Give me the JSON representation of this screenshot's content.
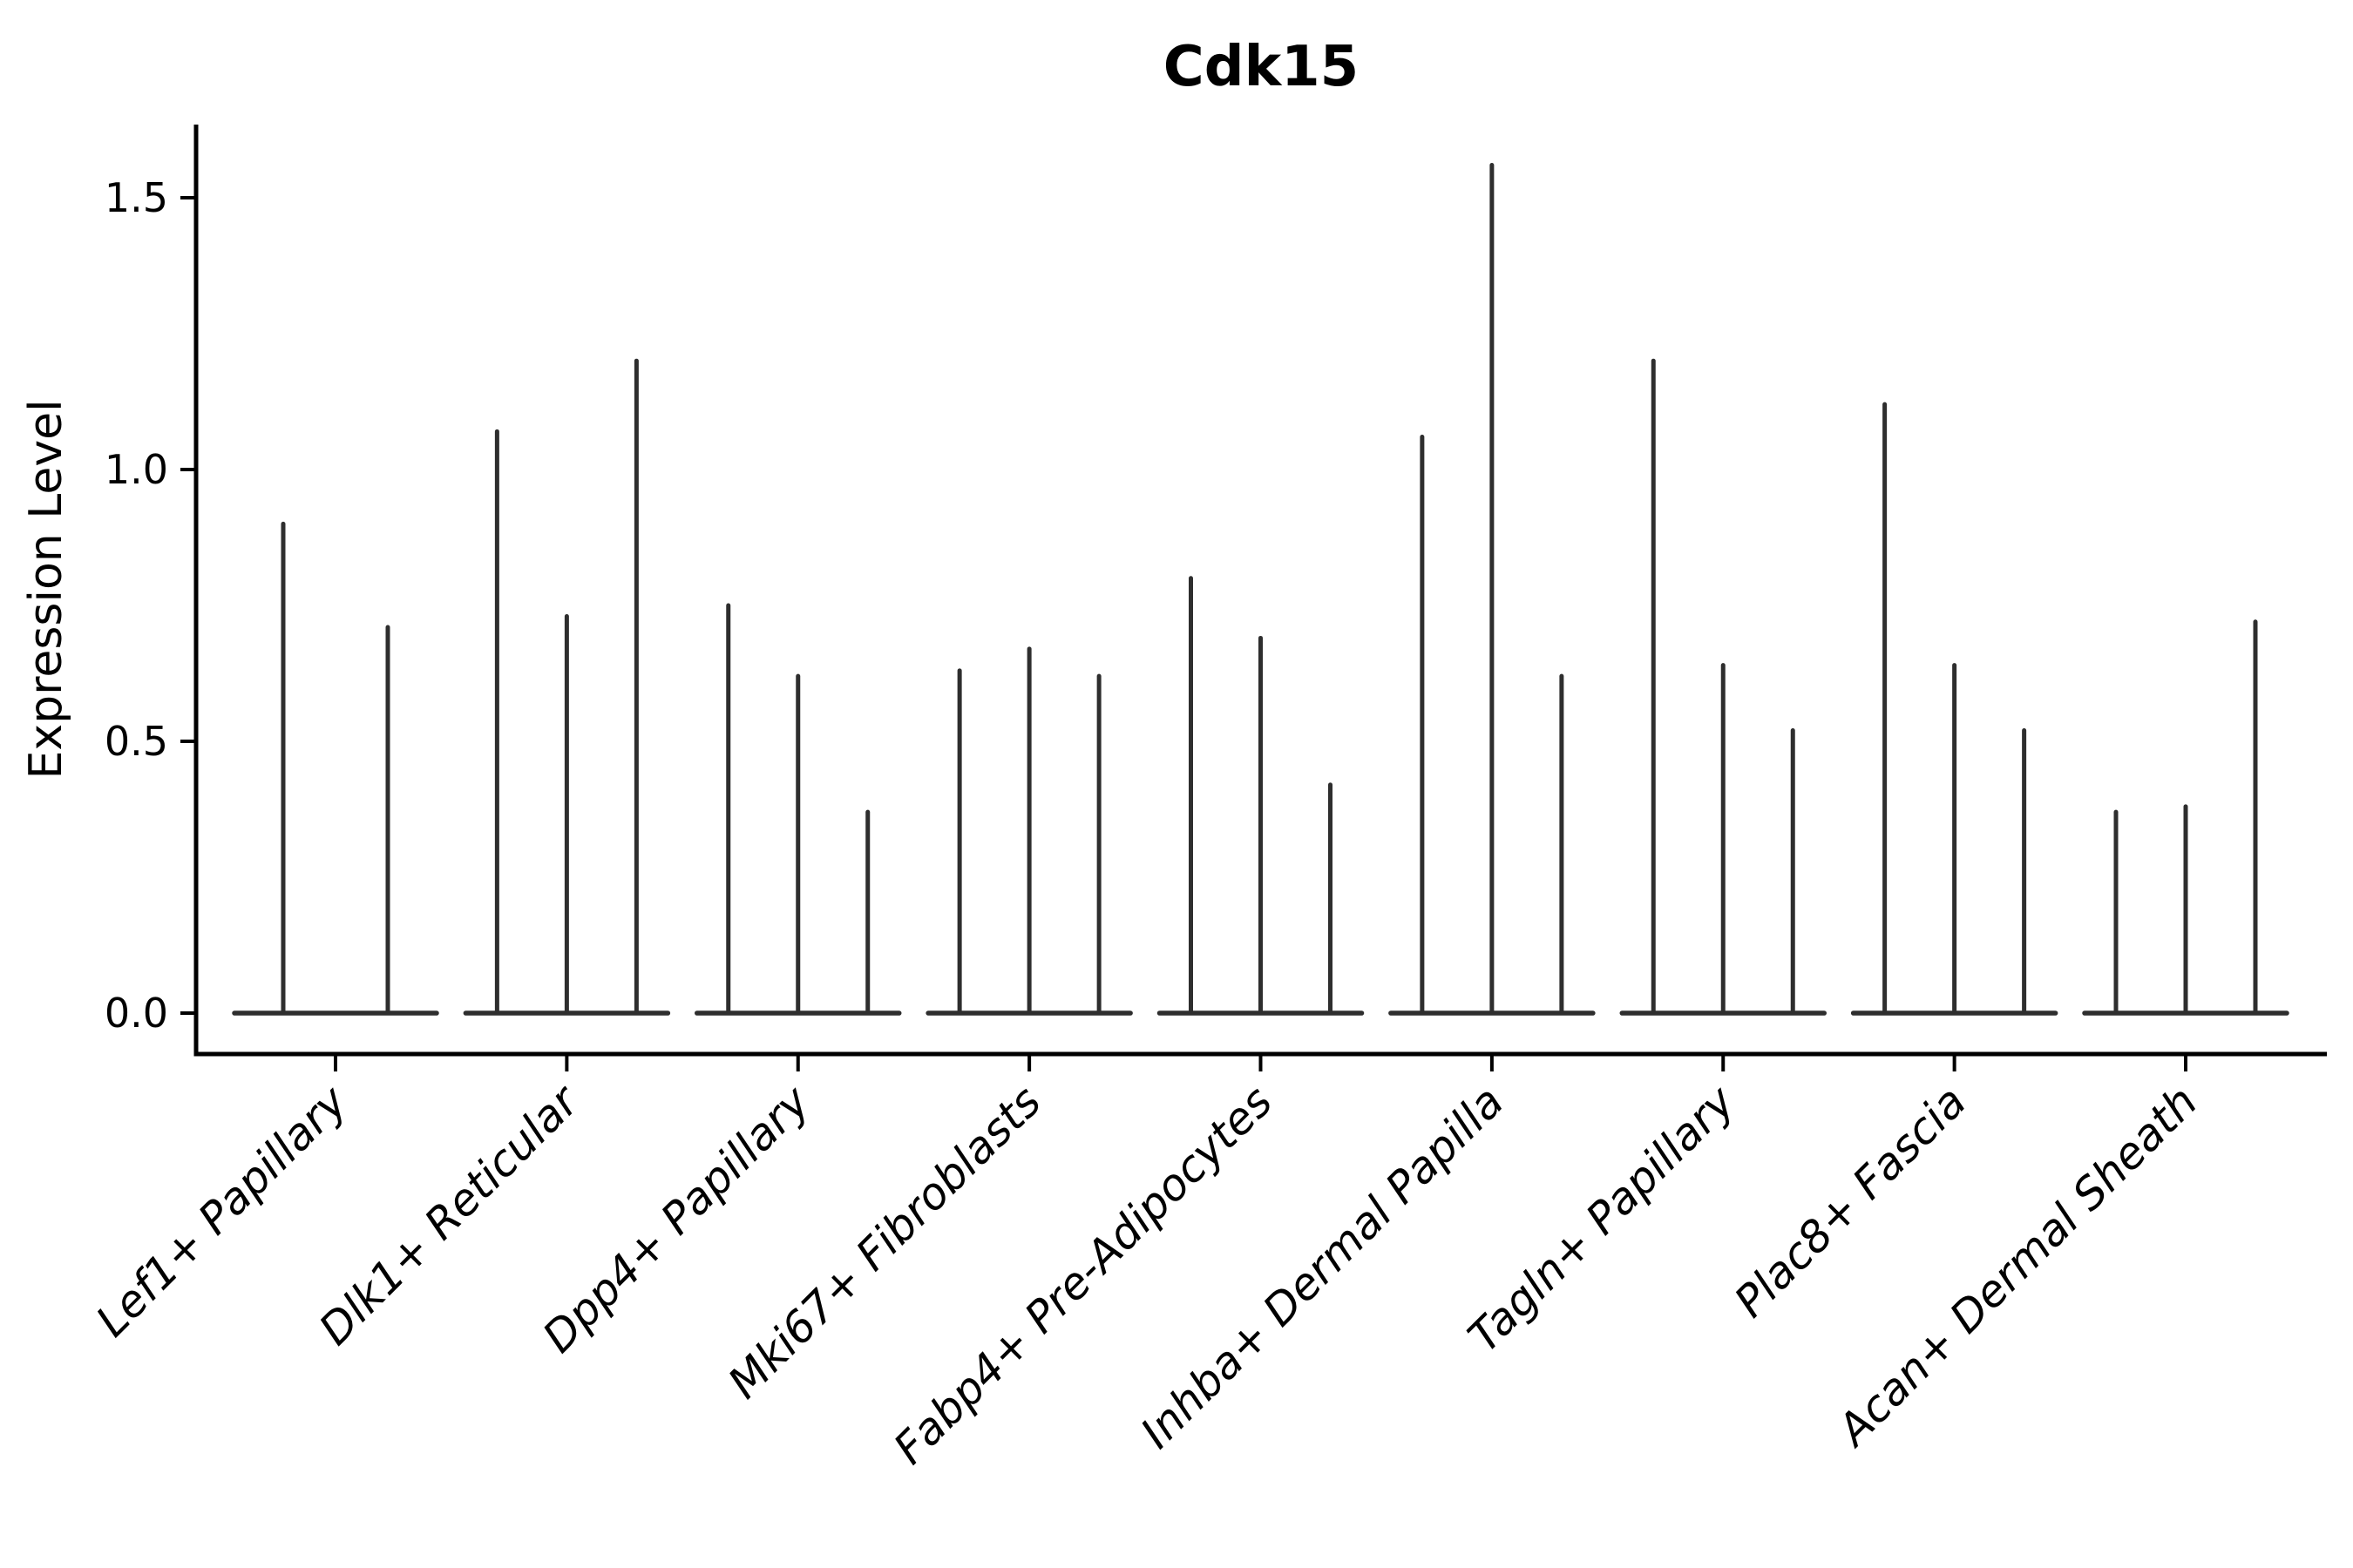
{
  "chart_data": {
    "type": "violin",
    "title": "Cdk15",
    "xlabel": "",
    "ylabel": "Expression Level",
    "ytick_labels": [
      "0.0",
      "0.5",
      "1.0",
      "1.5"
    ],
    "ytick_values": [
      0.0,
      0.5,
      1.0,
      1.5
    ],
    "ylim": [
      -0.075,
      1.635
    ],
    "grid": false,
    "legend": "none",
    "categories": [
      "Lef1+ Papillary",
      "Dlk1+ Reticular",
      "Dpp4+ Papillary",
      "Mki67+ Fibroblasts",
      "Fabp4+ Pre-Adipocytes",
      "Inhba+ Dermal Papilla",
      "Tagln+ Papillary",
      "Plac8+ Fascia",
      "Acan+ Dermal Sheath"
    ],
    "groups": [
      {
        "category": "Lef1+ Papillary",
        "violin_maxima": [
          0.9,
          0.71
        ]
      },
      {
        "category": "Dlk1+ Reticular",
        "violin_maxima": [
          1.07,
          0.73,
          1.2
        ]
      },
      {
        "category": "Dpp4+ Papillary",
        "violin_maxima": [
          0.75,
          0.62,
          0.37
        ]
      },
      {
        "category": "Mki67+ Fibroblasts",
        "violin_maxima": [
          0.63,
          0.67,
          0.62
        ]
      },
      {
        "category": "Fabp4+ Pre-Adipocytes",
        "violin_maxima": [
          0.8,
          0.69,
          0.42
        ]
      },
      {
        "category": "Inhba+ Dermal Papilla",
        "violin_maxima": [
          1.06,
          1.56,
          0.62
        ]
      },
      {
        "category": "Tagln+ Papillary",
        "violin_maxima": [
          1.2,
          0.64,
          0.52
        ]
      },
      {
        "category": "Plac8+ Fascia",
        "violin_maxima": [
          1.12,
          0.64,
          0.52
        ]
      },
      {
        "category": "Acan+ Dermal Sheath",
        "violin_maxima": [
          0.37,
          0.38,
          0.72
        ]
      }
    ],
    "violin_shape_note": "each violin collapses to a flat base at expression 0 with a thin spike rising to its maximum value",
    "colors": {
      "violin_stroke": "#2e2e2e",
      "axis": "#000000",
      "background": "#ffffff"
    }
  }
}
